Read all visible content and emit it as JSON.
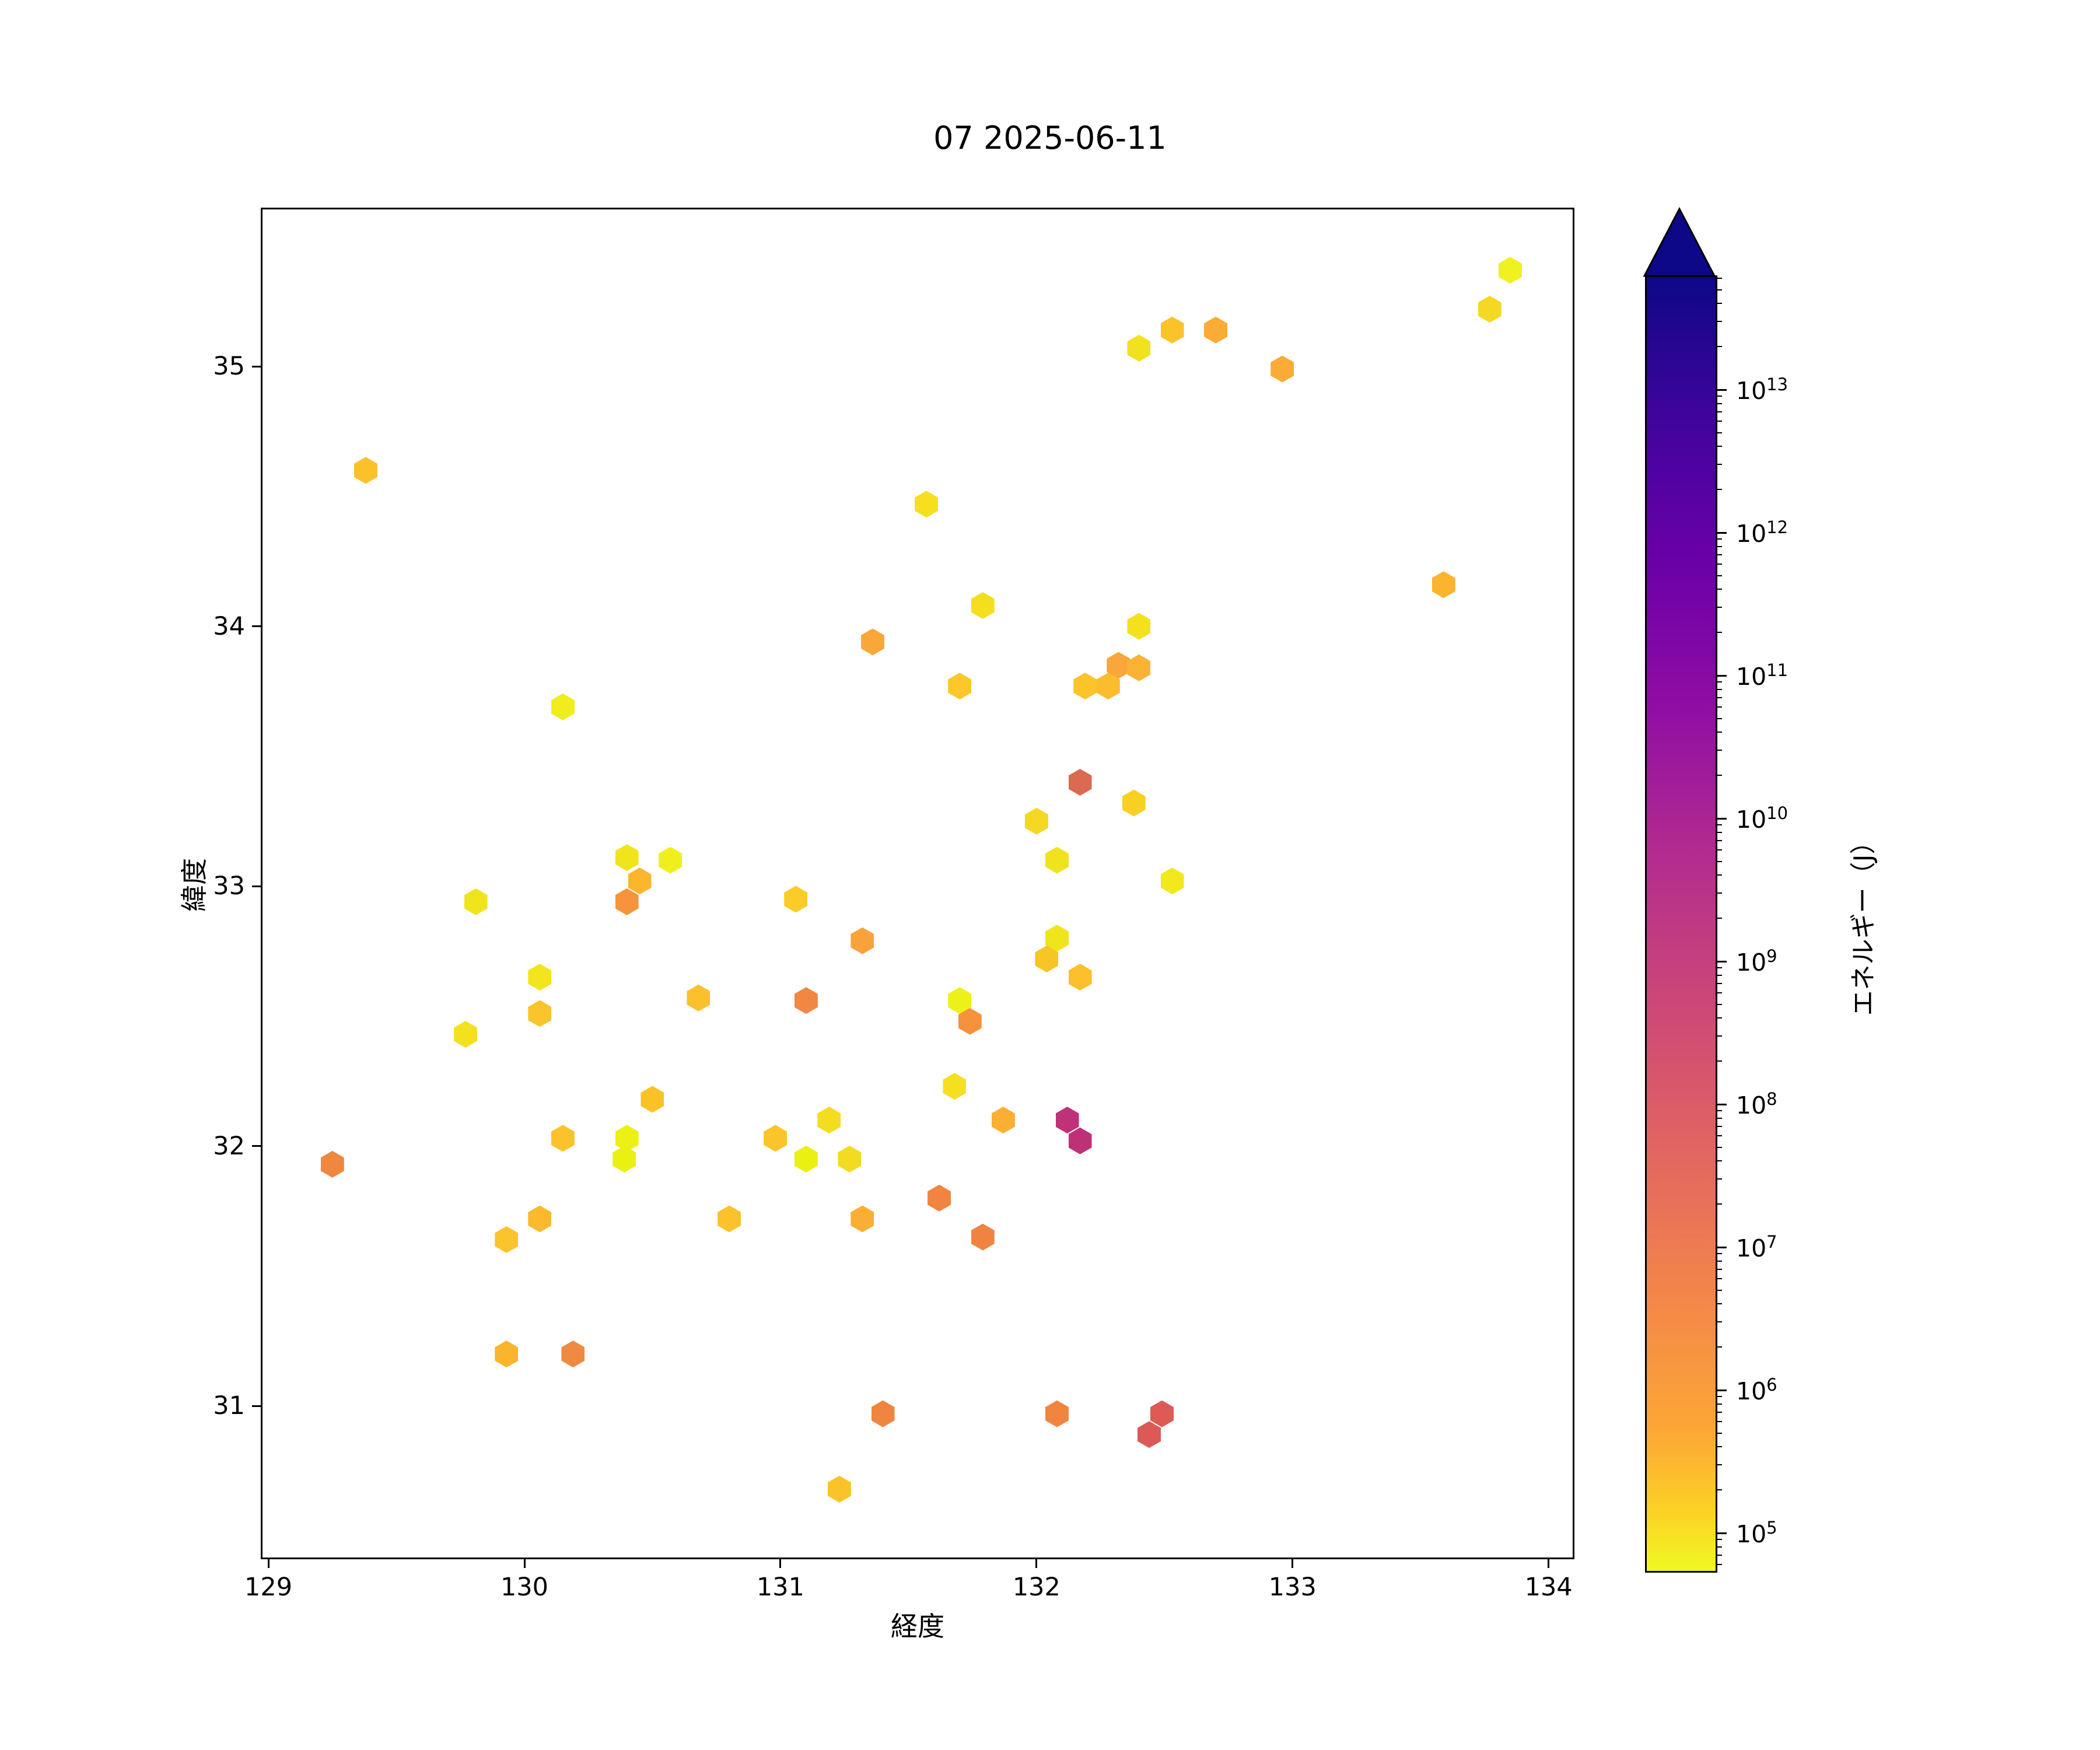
{
  "title": "07 2025-06-11",
  "chart_data": {
    "type": "scatter",
    "marker": "hexagon",
    "title": "07 2025-06-11",
    "xlabel": "経度",
    "ylabel": "緯度",
    "xlim": [
      128.977,
      134.094
    ],
    "ylim": [
      30.417,
      35.604
    ],
    "x_ticks": [
      129,
      130,
      131,
      132,
      133,
      134
    ],
    "y_ticks": [
      31,
      32,
      33,
      34,
      35
    ],
    "grid": false,
    "colorbar": {
      "label": "エネルギー（J）",
      "scale": "log",
      "colormap": "plasma_r",
      "extend": "max",
      "tick_exponents": [
        5,
        6,
        7,
        8,
        9,
        10,
        11,
        12,
        13
      ],
      "range_exponents": [
        4.75,
        13.8
      ],
      "arrow_color": "#0d0887",
      "gradient_top_to_bottom": [
        "#0d0887",
        "#41049d",
        "#6a00a8",
        "#8f0da4",
        "#b12a90",
        "#cc4778",
        "#e16462",
        "#f2844b",
        "#fca636",
        "#fcce25",
        "#f0f921"
      ]
    },
    "points": [
      {
        "lon": 129.38,
        "lat": 34.6,
        "color": "#fbc12b",
        "energy_j": 2000000.0
      },
      {
        "lon": 131.57,
        "lat": 34.47,
        "color": "#f6e01e",
        "energy_j": 400000.0
      },
      {
        "lon": 131.79,
        "lat": 34.08,
        "color": "#f4df1f",
        "energy_j": 400000.0
      },
      {
        "lon": 131.36,
        "lat": 33.94,
        "color": "#faa73a",
        "energy_j": 12000000.0
      },
      {
        "lon": 133.85,
        "lat": 35.37,
        "color": "#eff120",
        "energy_j": 120000.0
      },
      {
        "lon": 133.77,
        "lat": 35.22,
        "color": "#f5d821",
        "energy_j": 700000.0
      },
      {
        "lon": 132.53,
        "lat": 35.14,
        "color": "#fbc22b",
        "energy_j": 2000000.0
      },
      {
        "lon": 132.7,
        "lat": 35.14,
        "color": "#fbac34",
        "energy_j": 6000000.0
      },
      {
        "lon": 132.4,
        "lat": 35.07,
        "color": "#f2e11e",
        "energy_j": 350000.0
      },
      {
        "lon": 132.96,
        "lat": 34.99,
        "color": "#fbab36",
        "energy_j": 6000000.0
      },
      {
        "lon": 133.59,
        "lat": 34.16,
        "color": "#fbb42e",
        "energy_j": 5000000.0
      },
      {
        "lon": 130.15,
        "lat": 33.69,
        "color": "#f1ec1b",
        "energy_j": 200000.0
      },
      {
        "lon": 130.4,
        "lat": 33.11,
        "color": "#f0e51c",
        "energy_j": 300000.0
      },
      {
        "lon": 130.57,
        "lat": 33.1,
        "color": "#f0ef1c",
        "energy_j": 150000.0
      },
      {
        "lon": 130.45,
        "lat": 33.02,
        "color": "#fbb62e",
        "energy_j": 5000000.0
      },
      {
        "lon": 130.4,
        "lat": 32.94,
        "color": "#f6933b",
        "energy_j": 30000000.0
      },
      {
        "lon": 129.81,
        "lat": 32.94,
        "color": "#f0e51c",
        "energy_j": 300000.0
      },
      {
        "lon": 130.06,
        "lat": 32.65,
        "color": "#f2e51d",
        "energy_j": 300000.0
      },
      {
        "lon": 130.06,
        "lat": 32.51,
        "color": "#fbc42a",
        "energy_j": 1800000.0
      },
      {
        "lon": 129.77,
        "lat": 32.43,
        "color": "#f3e11e",
        "energy_j": 350000.0
      },
      {
        "lon": 130.68,
        "lat": 32.57,
        "color": "#fbc02b",
        "energy_j": 2200000.0
      },
      {
        "lon": 130.5,
        "lat": 32.18,
        "color": "#fbc228",
        "energy_j": 2000000.0
      },
      {
        "lon": 131.7,
        "lat": 33.77,
        "color": "#fbc72b",
        "energy_j": 1600000.0
      },
      {
        "lon": 132.4,
        "lat": 34.0,
        "color": "#f4e11e",
        "energy_j": 350000.0
      },
      {
        "lon": 132.32,
        "lat": 33.85,
        "color": "#f9a63c",
        "energy_j": 13000000.0
      },
      {
        "lon": 132.4,
        "lat": 33.84,
        "color": "#fbb336",
        "energy_j": 5500000.0
      },
      {
        "lon": 132.19,
        "lat": 33.77,
        "color": "#fbc42a",
        "energy_j": 1800000.0
      },
      {
        "lon": 132.28,
        "lat": 33.77,
        "color": "#fbbc2e",
        "energy_j": 3500000.0
      },
      {
        "lon": 132.17,
        "lat": 33.4,
        "color": "#da6a50",
        "energy_j": 400000000.0
      },
      {
        "lon": 132.38,
        "lat": 33.32,
        "color": "#f8d021",
        "energy_j": 800000.0
      },
      {
        "lon": 132.0,
        "lat": 33.25,
        "color": "#f4d823",
        "energy_j": 700000.0
      },
      {
        "lon": 132.08,
        "lat": 33.1,
        "color": "#f0e31d",
        "energy_j": 320000.0
      },
      {
        "lon": 131.06,
        "lat": 32.95,
        "color": "#fbcb28",
        "energy_j": 1500000.0
      },
      {
        "lon": 131.32,
        "lat": 32.79,
        "color": "#f9a23c",
        "energy_j": 15000000.0
      },
      {
        "lon": 132.08,
        "lat": 32.8,
        "color": "#efe51c",
        "energy_j": 300000.0
      },
      {
        "lon": 132.04,
        "lat": 32.72,
        "color": "#f6c526",
        "energy_j": 1700000.0
      },
      {
        "lon": 132.17,
        "lat": 32.65,
        "color": "#fbc02b",
        "energy_j": 2200000.0
      },
      {
        "lon": 131.7,
        "lat": 32.56,
        "color": "#eef019",
        "energy_j": 130000.0
      },
      {
        "lon": 131.74,
        "lat": 32.48,
        "color": "#f6913d",
        "energy_j": 30000000.0
      },
      {
        "lon": 131.1,
        "lat": 32.56,
        "color": "#f08743",
        "energy_j": 60000000.0
      },
      {
        "lon": 132.53,
        "lat": 33.02,
        "color": "#f2e81b",
        "energy_j": 250000.0
      },
      {
        "lon": 131.68,
        "lat": 32.23,
        "color": "#f4e01f",
        "energy_j": 400000.0
      },
      {
        "lon": 129.25,
        "lat": 31.93,
        "color": "#f0873f",
        "energy_j": 60000000.0
      },
      {
        "lon": 130.15,
        "lat": 32.03,
        "color": "#fbc22b",
        "energy_j": 2000000.0
      },
      {
        "lon": 130.4,
        "lat": 32.03,
        "color": "#edf015",
        "energy_j": 100000.0
      },
      {
        "lon": 130.39,
        "lat": 31.95,
        "color": "#e9f012",
        "energy_j": 80000.0
      },
      {
        "lon": 129.93,
        "lat": 31.64,
        "color": "#fbc42a",
        "energy_j": 1800000.0
      },
      {
        "lon": 130.06,
        "lat": 31.72,
        "color": "#fbb92c",
        "energy_j": 4000000.0
      },
      {
        "lon": 129.93,
        "lat": 31.2,
        "color": "#fbb42e",
        "energy_j": 5000000.0
      },
      {
        "lon": 130.19,
        "lat": 31.2,
        "color": "#ee8a41",
        "energy_j": 50000000.0
      },
      {
        "lon": 131.19,
        "lat": 32.1,
        "color": "#f4dd20",
        "energy_j": 500000.0
      },
      {
        "lon": 130.98,
        "lat": 32.03,
        "color": "#fbc42a",
        "energy_j": 1800000.0
      },
      {
        "lon": 131.1,
        "lat": 31.95,
        "color": "#e9f012",
        "energy_j": 80000.0
      },
      {
        "lon": 131.27,
        "lat": 31.95,
        "color": "#f2db20",
        "energy_j": 600000.0
      },
      {
        "lon": 131.87,
        "lat": 32.1,
        "color": "#faaf33",
        "energy_j": 6000000.0
      },
      {
        "lon": 132.12,
        "lat": 32.1,
        "color": "#c03278",
        "energy_j": 5000000000.0
      },
      {
        "lon": 132.17,
        "lat": 32.02,
        "color": "#be3179",
        "energy_j": 6000000000.0
      },
      {
        "lon": 130.8,
        "lat": 31.72,
        "color": "#fbc22b",
        "energy_j": 2000000.0
      },
      {
        "lon": 131.32,
        "lat": 31.72,
        "color": "#faae33",
        "energy_j": 6000000.0
      },
      {
        "lon": 131.62,
        "lat": 31.8,
        "color": "#f08440",
        "energy_j": 60000000.0
      },
      {
        "lon": 131.79,
        "lat": 31.65,
        "color": "#ef8441",
        "energy_j": 60000000.0
      },
      {
        "lon": 131.4,
        "lat": 30.97,
        "color": "#f08540",
        "energy_j": 60000000.0
      },
      {
        "lon": 132.08,
        "lat": 30.97,
        "color": "#f08540",
        "energy_j": 60000000.0
      },
      {
        "lon": 131.23,
        "lat": 30.68,
        "color": "#fbc32a",
        "energy_j": 1800000.0
      },
      {
        "lon": 132.49,
        "lat": 30.97,
        "color": "#dd5a55",
        "energy_j": 250000000.0
      },
      {
        "lon": 132.44,
        "lat": 30.89,
        "color": "#dc5a55",
        "energy_j": 250000000.0
      }
    ]
  }
}
